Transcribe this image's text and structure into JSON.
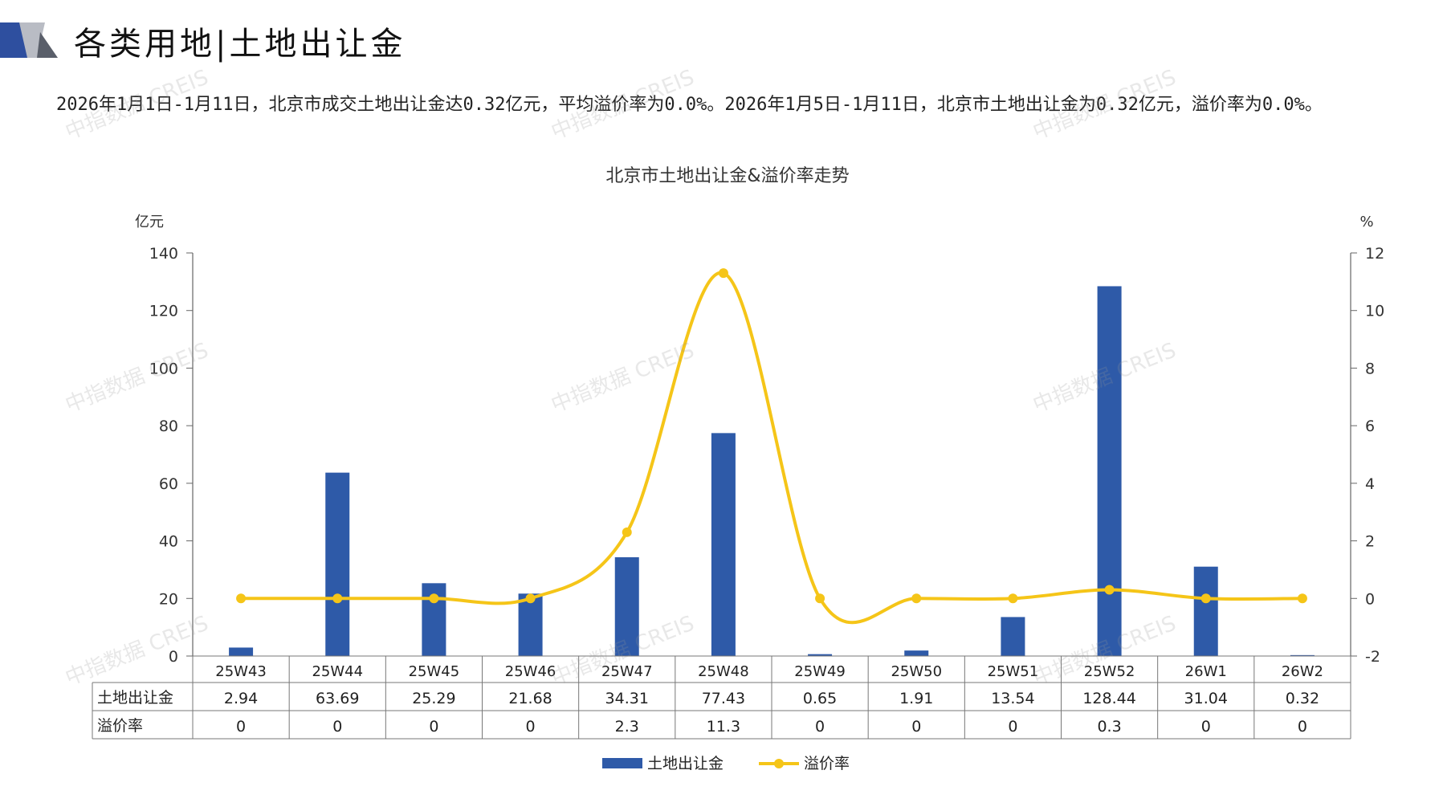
{
  "header": {
    "section_title": "各类用地|土地出让金",
    "summary": "2026年1月1日-1月11日，北京市成交土地出让金达0.32亿元，平均溢价率为0.0%。2026年1月5日-1月11日，北京市土地出让金为0.32亿元，溢价率为0.0%。"
  },
  "watermark_text": "中指数据 CREIS",
  "chart_data": {
    "type": "bar",
    "title": "北京市土地出让金&溢价率走势",
    "y_left_unit": "亿元",
    "y_right_unit": "%",
    "ylim_left": [
      0,
      140
    ],
    "yticks_left": [
      "0",
      "20",
      "40",
      "60",
      "80",
      "100",
      "120",
      "140"
    ],
    "ylim_right": [
      -2,
      12
    ],
    "yticks_right": [
      "-2",
      "0",
      "2",
      "4",
      "6",
      "8",
      "10",
      "12"
    ],
    "categories": [
      "25W43",
      "25W44",
      "25W45",
      "25W46",
      "25W47",
      "25W48",
      "25W49",
      "25W50",
      "25W51",
      "25W52",
      "26W1",
      "26W2"
    ],
    "series": [
      {
        "name": "土地出让金",
        "type": "bar",
        "axis": "left",
        "color": "#2e5aa8",
        "values": [
          2.94,
          63.69,
          25.29,
          21.68,
          34.31,
          77.43,
          0.65,
          1.91,
          13.54,
          128.44,
          31.04,
          0.32
        ],
        "labels": [
          "2.94",
          "63.69",
          "25.29",
          "21.68",
          "34.31",
          "77.43",
          "0.65",
          "1.91",
          "13.54",
          "128.44",
          "31.04",
          "0.32"
        ]
      },
      {
        "name": "溢价率",
        "type": "line",
        "axis": "right",
        "color": "#f5c518",
        "values": [
          0,
          0,
          0,
          0,
          2.3,
          11.3,
          0,
          0,
          0,
          0.3,
          0,
          0
        ],
        "labels": [
          "0",
          "0",
          "0",
          "0",
          "2.3",
          "11.3",
          "0",
          "0",
          "0",
          "0.3",
          "0",
          "0"
        ]
      }
    ],
    "legend_position": "bottom",
    "data_table": true
  }
}
